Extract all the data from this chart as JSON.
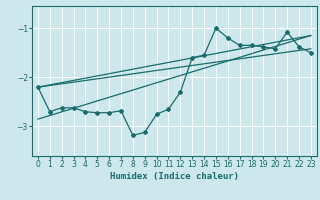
{
  "title": "",
  "xlabel": "Humidex (Indice chaleur)",
  "bg_color": "#cce8ec",
  "grid_color": "#ffffff",
  "line_color": "#1a6b6b",
  "xlim": [
    -0.5,
    23.5
  ],
  "ylim": [
    -3.6,
    -0.55
  ],
  "yticks": [
    -3,
    -2,
    -1
  ],
  "xticks": [
    0,
    1,
    2,
    3,
    4,
    5,
    6,
    7,
    8,
    9,
    10,
    11,
    12,
    13,
    14,
    15,
    16,
    17,
    18,
    19,
    20,
    21,
    22,
    23
  ],
  "curve_x": [
    0,
    1,
    2,
    3,
    4,
    5,
    6,
    7,
    8,
    9,
    10,
    11,
    12,
    13,
    14,
    15,
    16,
    17,
    18,
    19,
    20,
    21,
    22,
    23
  ],
  "curve_y": [
    -2.2,
    -2.7,
    -2.62,
    -2.62,
    -2.7,
    -2.72,
    -2.72,
    -2.68,
    -3.18,
    -3.12,
    -2.75,
    -2.65,
    -2.3,
    -1.6,
    -1.55,
    -1.0,
    -1.2,
    -1.35,
    -1.35,
    -1.38,
    -1.42,
    -1.08,
    -1.38,
    -1.5
  ],
  "trend1_x": [
    0,
    23
  ],
  "trend1_y": [
    -2.2,
    -1.15
  ],
  "trend2_x": [
    0,
    23
  ],
  "trend2_y": [
    -2.2,
    -1.42
  ],
  "trend3_x": [
    0,
    23
  ],
  "trend3_y": [
    -2.85,
    -1.15
  ]
}
